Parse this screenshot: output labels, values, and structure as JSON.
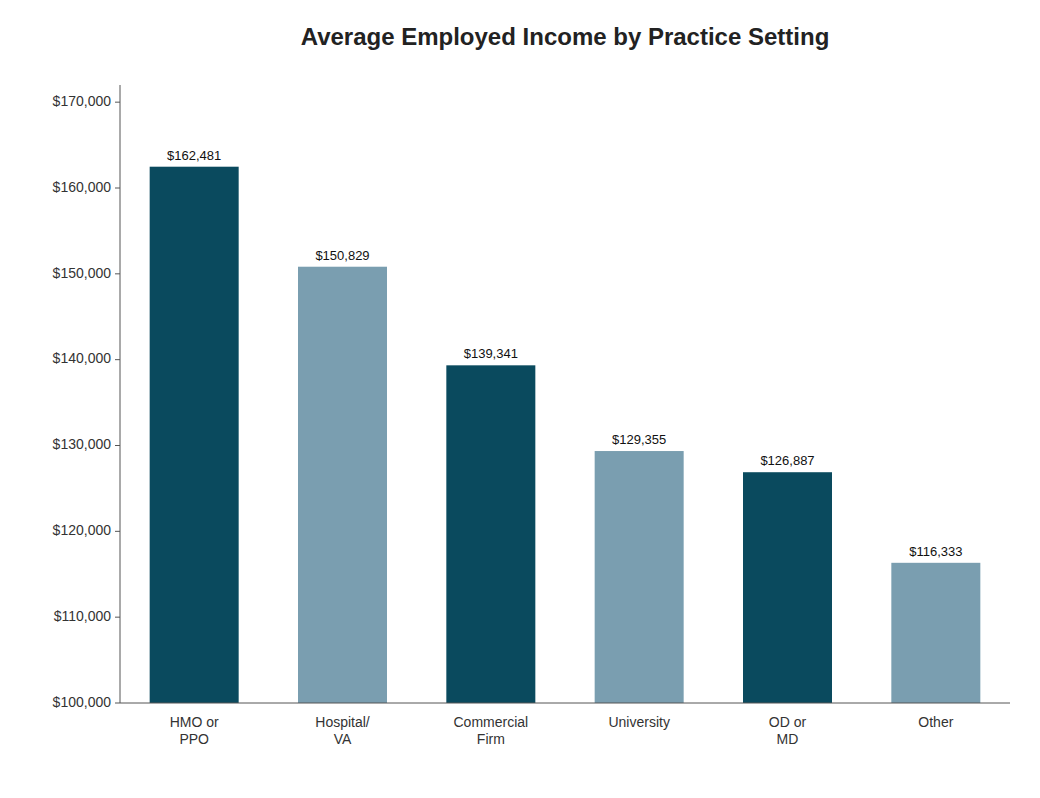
{
  "chart_data": {
    "type": "bar",
    "title": "Average Employed Income by Practice Setting",
    "categories": [
      "HMO or\nPPO",
      "Hospital/\nVA",
      "Commercial\nFirm",
      "University",
      "OD or\nMD",
      "Other"
    ],
    "values": [
      162481,
      150829,
      139341,
      129355,
      126887,
      116333
    ],
    "value_labels": [
      "$162,481",
      "$150,829",
      "$139,341",
      "$129,355",
      "$126,887",
      "$116,333"
    ],
    "colors": [
      "#0a4a5e",
      "#7a9eb0",
      "#0a4a5e",
      "#7a9eb0",
      "#0a4a5e",
      "#7a9eb0"
    ],
    "ylim": [
      100000,
      172000
    ],
    "yticks": [
      {
        "value": 100000,
        "label": "$100,000"
      },
      {
        "value": 110000,
        "label": "$110,000"
      },
      {
        "value": 120000,
        "label": "$120,000"
      },
      {
        "value": 130000,
        "label": "$130,000"
      },
      {
        "value": 140000,
        "label": "$140,000"
      },
      {
        "value": 150000,
        "label": "$150,000"
      },
      {
        "value": 160000,
        "label": "$160,000"
      },
      {
        "value": 170000,
        "label": "$170,000"
      }
    ],
    "grid": false,
    "data_labels": true
  }
}
